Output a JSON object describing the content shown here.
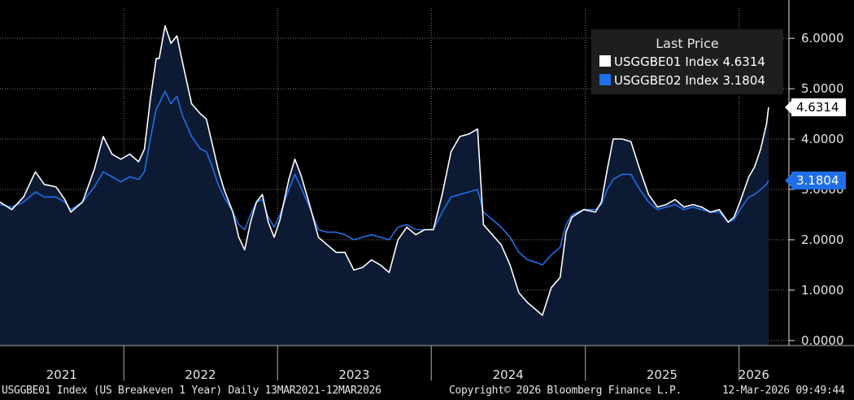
{
  "legend": {
    "title": "Last Price",
    "items": [
      {
        "label": "USGGBE01 Index",
        "value": "4.6314",
        "color": "#ffffff"
      },
      {
        "label": "USGGBE02 Index",
        "value": "3.1804",
        "color": "#1f6fe8"
      }
    ]
  },
  "last_value_tags": [
    {
      "text": "4.6314",
      "bg": "#ffffff",
      "fg": "#000000"
    },
    {
      "text": "3.1804",
      "bg": "#1f6fe8",
      "fg": "#ffffff"
    }
  ],
  "footer": {
    "left": "USGGBE01 Index (US Breakeven 1 Year) Daily 13MAR2021-12MAR2026",
    "center": "Copyright© 2026 Bloomberg Finance L.P.",
    "right": "12-Mar-2026 09:49:44"
  },
  "colors": {
    "background": "#000000",
    "area": "#0d1a33",
    "grid": "#7a7a7a",
    "series1": "#ffffff",
    "series2": "#1f6fe8"
  },
  "chart_data": {
    "type": "line",
    "x_range": [
      "2021-03-13",
      "2026-03-12"
    ],
    "ylim": [
      -0.1,
      6.6
    ],
    "y_ticks": [
      0,
      1,
      2,
      3,
      4,
      5,
      6
    ],
    "y_tick_labels": [
      "0.0000",
      "1.0000",
      "2.0000",
      "3.0000",
      "4.0000",
      "5.0000",
      "6.0000"
    ],
    "year_labels": [
      {
        "label": "2021",
        "from": "2021-03-13",
        "to": "2021-12-31"
      },
      {
        "label": "2022",
        "from": "2022-01-01",
        "to": "2022-12-31"
      },
      {
        "label": "2023",
        "from": "2023-01-01",
        "to": "2023-12-31"
      },
      {
        "label": "2024",
        "from": "2024-01-01",
        "to": "2024-12-31"
      },
      {
        "label": "2025",
        "from": "2025-01-01",
        "to": "2025-12-31"
      },
      {
        "label": "2026",
        "from": "2026-01-01",
        "to": "2026-03-12"
      }
    ],
    "series": [
      {
        "name": "USGGBE01 Index",
        "last": 4.6314,
        "points": [
          [
            "2021-03-13",
            2.75
          ],
          [
            "2021-04-10",
            2.6
          ],
          [
            "2021-05-08",
            2.85
          ],
          [
            "2021-06-05",
            3.35
          ],
          [
            "2021-06-26",
            3.1
          ],
          [
            "2021-07-24",
            3.05
          ],
          [
            "2021-08-14",
            2.8
          ],
          [
            "2021-08-28",
            2.55
          ],
          [
            "2021-09-25",
            2.75
          ],
          [
            "2021-10-23",
            3.4
          ],
          [
            "2021-11-13",
            4.05
          ],
          [
            "2021-12-04",
            3.7
          ],
          [
            "2021-12-25",
            3.6
          ],
          [
            "2022-01-15",
            3.7
          ],
          [
            "2022-02-05",
            3.55
          ],
          [
            "2022-02-19",
            3.8
          ],
          [
            "2022-03-05",
            4.8
          ],
          [
            "2022-03-19",
            5.6
          ],
          [
            "2022-03-26",
            5.6
          ],
          [
            "2022-04-09",
            6.25
          ],
          [
            "2022-04-23",
            5.9
          ],
          [
            "2022-05-07",
            6.05
          ],
          [
            "2022-05-21",
            5.5
          ],
          [
            "2022-06-11",
            4.7
          ],
          [
            "2022-07-02",
            4.5
          ],
          [
            "2022-07-16",
            4.4
          ],
          [
            "2022-07-30",
            3.9
          ],
          [
            "2022-08-13",
            3.4
          ],
          [
            "2022-08-27",
            3.0
          ],
          [
            "2022-09-17",
            2.55
          ],
          [
            "2022-10-01",
            2.05
          ],
          [
            "2022-10-15",
            1.8
          ],
          [
            "2022-10-29",
            2.35
          ],
          [
            "2022-11-12",
            2.75
          ],
          [
            "2022-11-26",
            2.9
          ],
          [
            "2022-12-10",
            2.35
          ],
          [
            "2022-12-24",
            2.05
          ],
          [
            "2023-01-07",
            2.4
          ],
          [
            "2023-01-28",
            3.2
          ],
          [
            "2023-02-11",
            3.6
          ],
          [
            "2023-02-25",
            3.3
          ],
          [
            "2023-03-18",
            2.7
          ],
          [
            "2023-04-08",
            2.05
          ],
          [
            "2023-04-29",
            1.9
          ],
          [
            "2023-05-20",
            1.75
          ],
          [
            "2023-06-10",
            1.75
          ],
          [
            "2023-07-01",
            1.4
          ],
          [
            "2023-07-22",
            1.45
          ],
          [
            "2023-08-12",
            1.6
          ],
          [
            "2023-09-02",
            1.5
          ],
          [
            "2023-09-23",
            1.35
          ],
          [
            "2023-10-14",
            2.0
          ],
          [
            "2023-11-04",
            2.25
          ],
          [
            "2023-11-25",
            2.1
          ],
          [
            "2023-12-16",
            2.2
          ],
          [
            "2024-01-06",
            2.2
          ],
          [
            "2024-01-27",
            2.9
          ],
          [
            "2024-02-17",
            3.75
          ],
          [
            "2024-03-09",
            4.05
          ],
          [
            "2024-03-30",
            4.1
          ],
          [
            "2024-04-20",
            4.2
          ],
          [
            "2024-05-04",
            2.3
          ],
          [
            "2024-05-25",
            2.1
          ],
          [
            "2024-06-15",
            1.9
          ],
          [
            "2024-07-06",
            1.5
          ],
          [
            "2024-07-27",
            0.95
          ],
          [
            "2024-08-17",
            0.75
          ],
          [
            "2024-09-07",
            0.6
          ],
          [
            "2024-09-21",
            0.5
          ],
          [
            "2024-10-12",
            1.05
          ],
          [
            "2024-11-02",
            1.25
          ],
          [
            "2024-11-16",
            2.15
          ],
          [
            "2024-11-30",
            2.45
          ],
          [
            "2024-12-28",
            2.6
          ],
          [
            "2025-01-25",
            2.55
          ],
          [
            "2025-02-08",
            2.75
          ],
          [
            "2025-02-22",
            3.4
          ],
          [
            "2025-03-08",
            4.0
          ],
          [
            "2025-03-29",
            4.0
          ],
          [
            "2025-04-19",
            3.95
          ],
          [
            "2025-05-10",
            3.4
          ],
          [
            "2025-05-31",
            2.9
          ],
          [
            "2025-06-21",
            2.65
          ],
          [
            "2025-07-12",
            2.7
          ],
          [
            "2025-08-02",
            2.8
          ],
          [
            "2025-08-23",
            2.65
          ],
          [
            "2025-09-13",
            2.7
          ],
          [
            "2025-10-04",
            2.65
          ],
          [
            "2025-10-25",
            2.55
          ],
          [
            "2025-11-15",
            2.6
          ],
          [
            "2025-12-06",
            2.35
          ],
          [
            "2025-12-20",
            2.45
          ],
          [
            "2026-01-03",
            2.75
          ],
          [
            "2026-01-24",
            3.25
          ],
          [
            "2026-02-07",
            3.45
          ],
          [
            "2026-02-21",
            3.8
          ],
          [
            "2026-03-07",
            4.3
          ],
          [
            "2026-03-12",
            4.6314
          ]
        ]
      },
      {
        "name": "USGGBE02 Index",
        "last": 3.1804,
        "points": [
          [
            "2021-03-13",
            2.7
          ],
          [
            "2021-04-10",
            2.65
          ],
          [
            "2021-05-08",
            2.75
          ],
          [
            "2021-06-05",
            2.95
          ],
          [
            "2021-06-26",
            2.85
          ],
          [
            "2021-07-24",
            2.85
          ],
          [
            "2021-08-14",
            2.75
          ],
          [
            "2021-08-28",
            2.6
          ],
          [
            "2021-09-25",
            2.75
          ],
          [
            "2021-10-23",
            3.05
          ],
          [
            "2021-11-13",
            3.35
          ],
          [
            "2021-12-04",
            3.25
          ],
          [
            "2021-12-25",
            3.15
          ],
          [
            "2022-01-15",
            3.25
          ],
          [
            "2022-02-05",
            3.2
          ],
          [
            "2022-02-19",
            3.35
          ],
          [
            "2022-03-05",
            4.0
          ],
          [
            "2022-03-19",
            4.6
          ],
          [
            "2022-03-26",
            4.7
          ],
          [
            "2022-04-09",
            4.95
          ],
          [
            "2022-04-23",
            4.7
          ],
          [
            "2022-05-07",
            4.85
          ],
          [
            "2022-05-21",
            4.45
          ],
          [
            "2022-06-11",
            4.05
          ],
          [
            "2022-07-02",
            3.8
          ],
          [
            "2022-07-16",
            3.75
          ],
          [
            "2022-07-30",
            3.45
          ],
          [
            "2022-08-13",
            3.1
          ],
          [
            "2022-08-27",
            2.85
          ],
          [
            "2022-09-17",
            2.55
          ],
          [
            "2022-10-01",
            2.3
          ],
          [
            "2022-10-15",
            2.2
          ],
          [
            "2022-10-29",
            2.5
          ],
          [
            "2022-11-12",
            2.75
          ],
          [
            "2022-11-26",
            2.8
          ],
          [
            "2022-12-10",
            2.45
          ],
          [
            "2022-12-24",
            2.25
          ],
          [
            "2023-01-07",
            2.5
          ],
          [
            "2023-01-28",
            3.0
          ],
          [
            "2023-02-11",
            3.3
          ],
          [
            "2023-02-25",
            3.05
          ],
          [
            "2023-03-18",
            2.65
          ],
          [
            "2023-04-08",
            2.2
          ],
          [
            "2023-04-29",
            2.15
          ],
          [
            "2023-05-20",
            2.15
          ],
          [
            "2023-06-10",
            2.1
          ],
          [
            "2023-07-01",
            2.0
          ],
          [
            "2023-07-22",
            2.05
          ],
          [
            "2023-08-12",
            2.1
          ],
          [
            "2023-09-02",
            2.05
          ],
          [
            "2023-09-23",
            2.0
          ],
          [
            "2023-10-14",
            2.25
          ],
          [
            "2023-11-04",
            2.3
          ],
          [
            "2023-11-25",
            2.2
          ],
          [
            "2023-12-16",
            2.2
          ],
          [
            "2024-01-06",
            2.2
          ],
          [
            "2024-01-27",
            2.55
          ],
          [
            "2024-02-17",
            2.85
          ],
          [
            "2024-03-09",
            2.9
          ],
          [
            "2024-03-30",
            2.95
          ],
          [
            "2024-04-20",
            3.0
          ],
          [
            "2024-05-04",
            2.55
          ],
          [
            "2024-05-25",
            2.4
          ],
          [
            "2024-06-15",
            2.25
          ],
          [
            "2024-07-06",
            2.05
          ],
          [
            "2024-07-27",
            1.75
          ],
          [
            "2024-08-17",
            1.6
          ],
          [
            "2024-09-07",
            1.55
          ],
          [
            "2024-09-21",
            1.5
          ],
          [
            "2024-10-12",
            1.7
          ],
          [
            "2024-11-02",
            1.85
          ],
          [
            "2024-11-16",
            2.3
          ],
          [
            "2024-11-30",
            2.5
          ],
          [
            "2024-12-28",
            2.6
          ],
          [
            "2025-01-25",
            2.6
          ],
          [
            "2025-02-08",
            2.7
          ],
          [
            "2025-02-22",
            3.0
          ],
          [
            "2025-03-08",
            3.2
          ],
          [
            "2025-03-29",
            3.3
          ],
          [
            "2025-04-19",
            3.3
          ],
          [
            "2025-05-10",
            3.0
          ],
          [
            "2025-05-31",
            2.75
          ],
          [
            "2025-06-21",
            2.6
          ],
          [
            "2025-07-12",
            2.65
          ],
          [
            "2025-08-02",
            2.7
          ],
          [
            "2025-08-23",
            2.6
          ],
          [
            "2025-09-13",
            2.65
          ],
          [
            "2025-10-04",
            2.6
          ],
          [
            "2025-10-25",
            2.55
          ],
          [
            "2025-11-15",
            2.55
          ],
          [
            "2025-12-06",
            2.35
          ],
          [
            "2025-12-20",
            2.4
          ],
          [
            "2026-01-03",
            2.6
          ],
          [
            "2026-01-24",
            2.85
          ],
          [
            "2026-02-07",
            2.9
          ],
          [
            "2026-02-21",
            3.0
          ],
          [
            "2026-03-07",
            3.1
          ],
          [
            "2026-03-12",
            3.1804
          ]
        ]
      }
    ]
  }
}
